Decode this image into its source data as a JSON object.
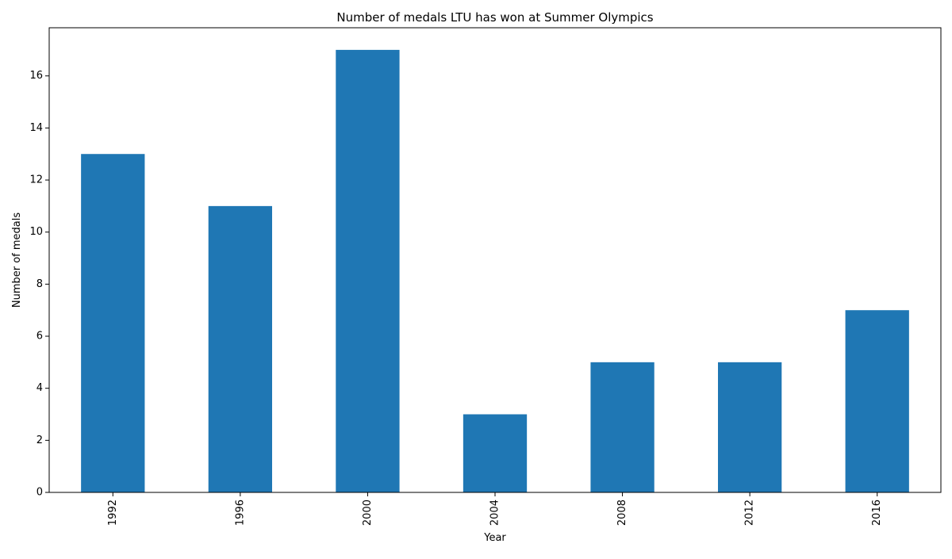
{
  "chart_data": {
    "type": "bar",
    "title": "Number of medals LTU has won at Summer Olympics",
    "xlabel": "Year",
    "ylabel": "Number of medals",
    "categories": [
      "1992",
      "1996",
      "2000",
      "2004",
      "2008",
      "2012",
      "2016"
    ],
    "values": [
      13,
      11,
      17,
      3,
      5,
      5,
      7
    ],
    "ylim": [
      0,
      17.85
    ],
    "yticks": [
      0,
      2,
      4,
      6,
      8,
      10,
      12,
      14,
      16
    ],
    "grid": false,
    "legend": "none",
    "x_tick_rotation": "vertical",
    "bar_color": "#1f77b4"
  }
}
